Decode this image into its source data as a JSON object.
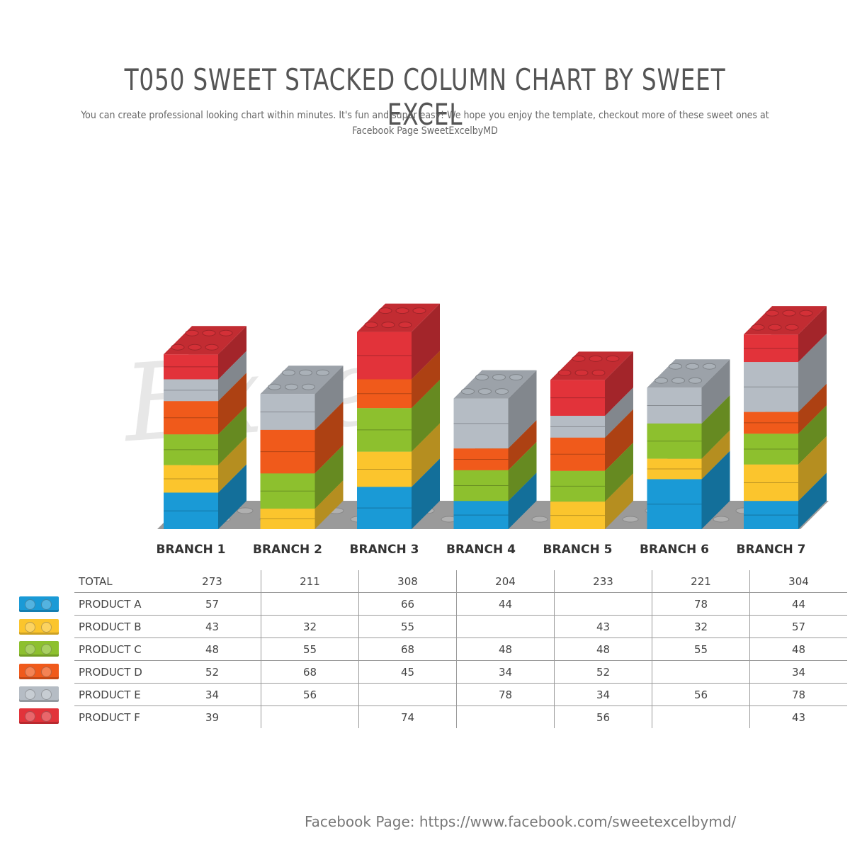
{
  "title": "T050 SWEET STACKED COLUMN CHART BY SWEET EXCEL",
  "subtitle": "You can create professional looking chart within minutes. It's fun and super easy! We hope you enjoy the template, checkout more of these sweet ones at Facebook Page SweetExcelbyMD",
  "watermark": "Excel",
  "footer": "Facebook Page: https://www.facebook.com/sweetexcelbymd/",
  "chart_data": {
    "type": "bar",
    "stacked": true,
    "categories": [
      "BRANCH 1",
      "BRANCH 2",
      "BRANCH 3",
      "BRANCH 4",
      "BRANCH 5",
      "BRANCH 6",
      "BRANCH 7"
    ],
    "totals_label": "TOTAL",
    "totals": [
      273,
      211,
      308,
      204,
      233,
      221,
      304
    ],
    "series": [
      {
        "name": "PRODUCT A",
        "color": "#1a9ad6",
        "values": [
          57,
          null,
          66,
          44,
          null,
          78,
          44
        ]
      },
      {
        "name": "PRODUCT B",
        "color": "#fbc52d",
        "values": [
          43,
          32,
          55,
          null,
          43,
          32,
          57
        ]
      },
      {
        "name": "PRODUCT C",
        "color": "#8dc02e",
        "values": [
          48,
          55,
          68,
          48,
          48,
          55,
          48
        ]
      },
      {
        "name": "PRODUCT D",
        "color": "#f05a1b",
        "values": [
          52,
          68,
          45,
          34,
          52,
          null,
          34
        ]
      },
      {
        "name": "PRODUCT E",
        "color": "#b5bcc4",
        "values": [
          34,
          56,
          null,
          78,
          34,
          56,
          78
        ]
      },
      {
        "name": "PRODUCT F",
        "color": "#e2333a",
        "values": [
          39,
          null,
          74,
          null,
          56,
          null,
          43
        ]
      }
    ],
    "legend_position": "table-left"
  }
}
